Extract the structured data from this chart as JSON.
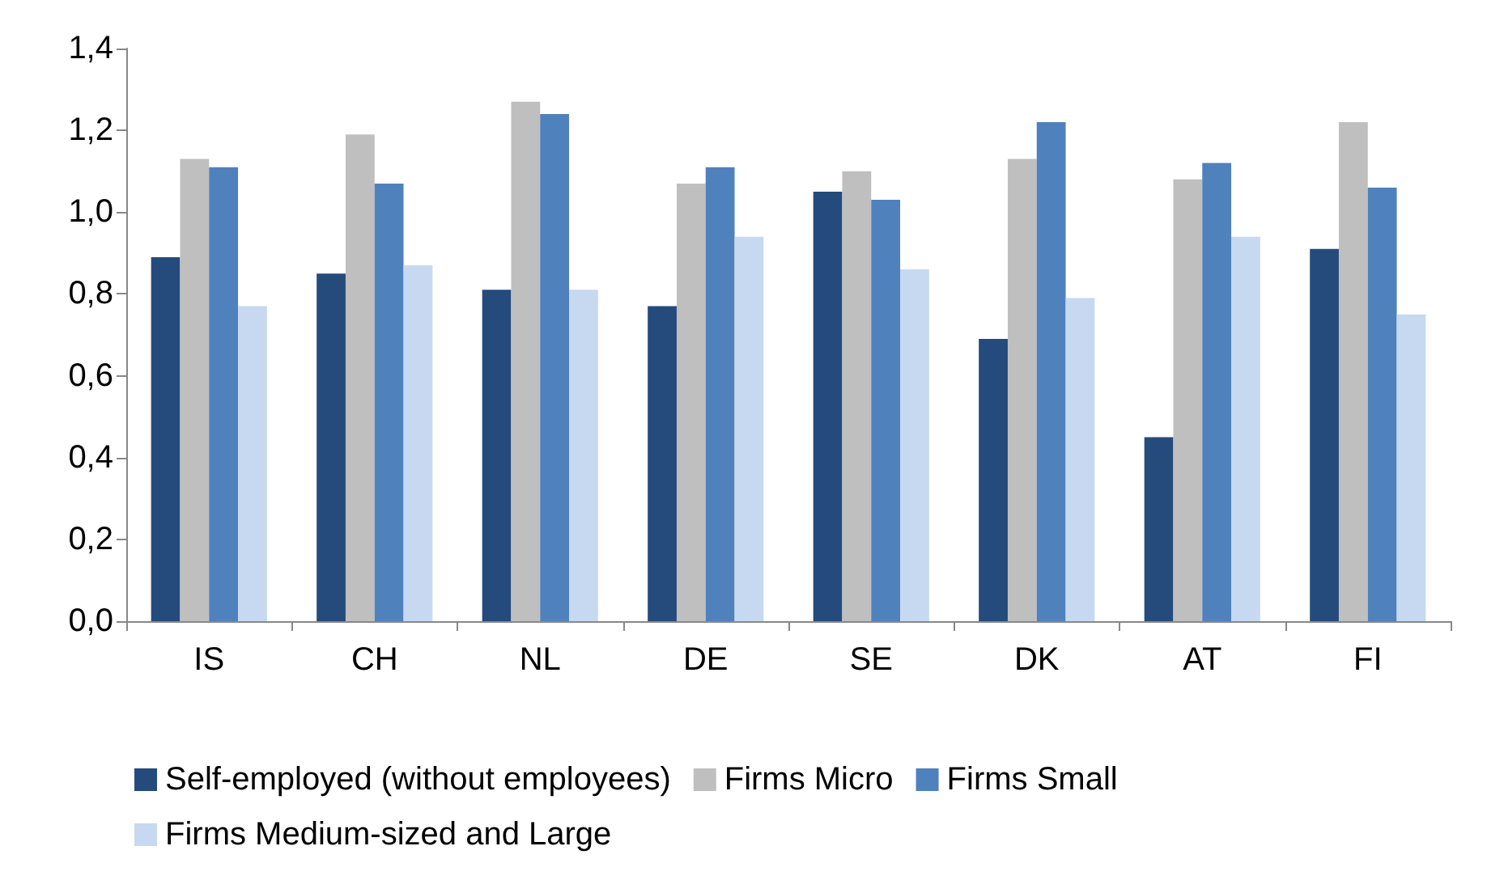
{
  "chart_data": {
    "type": "bar",
    "categories": [
      "IS",
      "CH",
      "NL",
      "DE",
      "SE",
      "DK",
      "AT",
      "FI"
    ],
    "series": [
      {
        "name": "Self-employed (without employees)",
        "color": "#254a7c",
        "values": [
          0.89,
          0.85,
          0.81,
          0.77,
          1.05,
          0.69,
          0.45,
          0.91
        ]
      },
      {
        "name": "Firms Micro",
        "color": "#bfbfbf",
        "values": [
          1.13,
          1.19,
          1.27,
          1.07,
          1.1,
          1.13,
          1.08,
          1.22
        ]
      },
      {
        "name": "Firms Small",
        "color": "#4f81bd",
        "values": [
          1.11,
          1.07,
          1.24,
          1.11,
          1.03,
          1.22,
          1.12,
          1.06
        ]
      },
      {
        "name": "Firms Medium-sized and Large",
        "color": "#c6d9f1",
        "values": [
          0.77,
          0.87,
          0.81,
          0.94,
          0.86,
          0.79,
          0.94,
          0.75
        ]
      }
    ],
    "ylim": [
      0,
      1.4
    ],
    "yticks": [
      {
        "value": 0,
        "label": "0,0"
      },
      {
        "value": 0.2,
        "label": "0,2"
      },
      {
        "value": 0.4,
        "label": "0,4"
      },
      {
        "value": 0.6,
        "label": "0,6"
      },
      {
        "value": 0.8,
        "label": "0,8"
      },
      {
        "value": 1,
        "label": "1,0"
      },
      {
        "value": 1.2,
        "label": "1,2"
      },
      {
        "value": 1.4,
        "label": "1,4"
      }
    ],
    "grid": false,
    "legend": "bottom"
  }
}
